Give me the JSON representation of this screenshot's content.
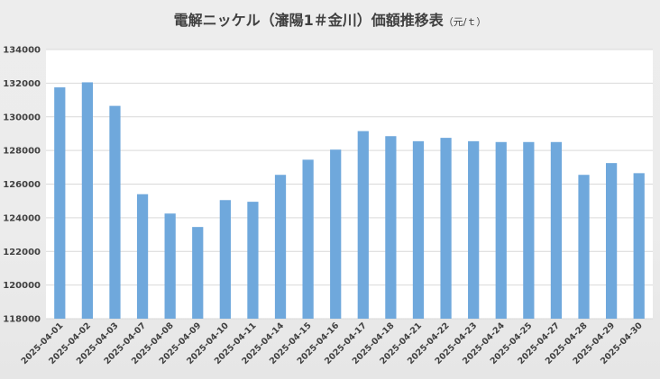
{
  "chart_data": {
    "type": "bar",
    "title": "電解ニッケル（瀋陽1＃金川）価額推移表",
    "title_unit": "（元/ｔ）",
    "xlabel": "",
    "ylabel": "",
    "ylim": [
      118000,
      134000
    ],
    "yticks": [
      118000,
      120000,
      122000,
      124000,
      126000,
      128000,
      130000,
      132000,
      134000
    ],
    "grid": true,
    "legend": "none",
    "bar_color": "#6fa8dc",
    "categories": [
      "2025-04-01",
      "2025-04-02",
      "2025-04-03",
      "2025-04-07",
      "2025-04-08",
      "2025-04-09",
      "2025-04-10",
      "2025-04-11",
      "2025-04-14",
      "2025-04-15",
      "2025-04-16",
      "2025-04-17",
      "2025-04-18",
      "2025-04-21",
      "2025-04-22",
      "2025-04-23",
      "2025-04-24",
      "2025-04-25",
      "2025-04-27",
      "2025-04-28",
      "2025-04-29",
      "2025-04-30"
    ],
    "values": [
      131750,
      132050,
      130650,
      125400,
      124250,
      123450,
      125050,
      124950,
      126550,
      127450,
      128050,
      129150,
      128850,
      128550,
      128750,
      128550,
      128500,
      128500,
      128500,
      126550,
      127250,
      126650
    ]
  }
}
